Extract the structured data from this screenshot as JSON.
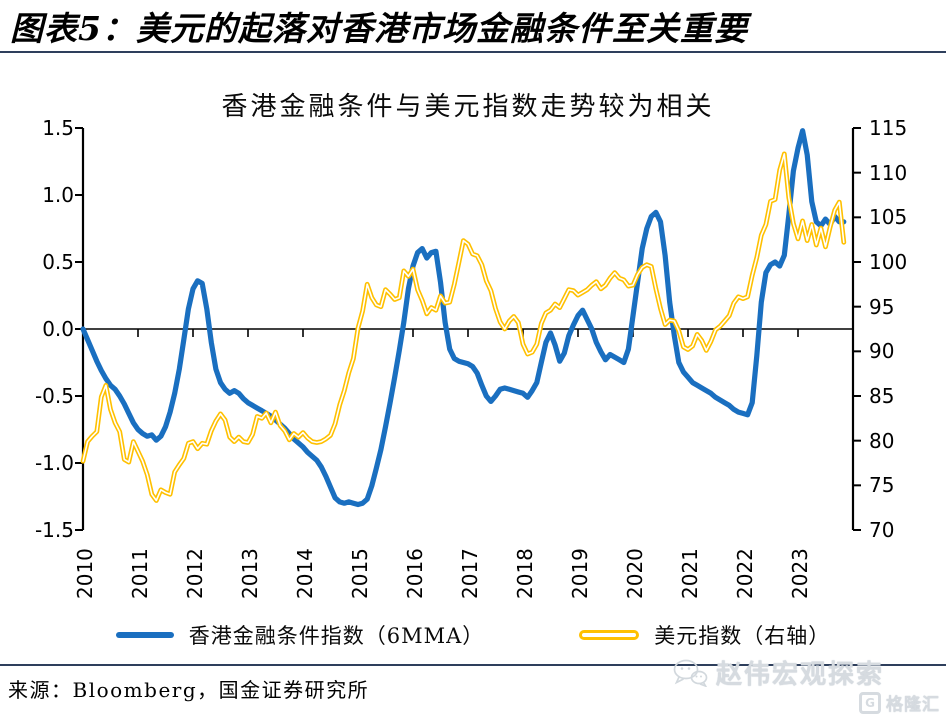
{
  "header": {
    "title": "图表5：美元的起落对香港市场金融条件至关重要"
  },
  "chart_data": {
    "type": "line",
    "title": "香港金融条件与美元指数走势较为相关",
    "grid": false,
    "legend_position": "bottom",
    "x": {
      "unit": "month",
      "points_per_year": 12,
      "tick_labels": [
        "2010",
        "2011",
        "2012",
        "2013",
        "2014",
        "2015",
        "2016",
        "2017",
        "2018",
        "2019",
        "2020",
        "2021",
        "2022",
        "2023"
      ]
    },
    "left_axis": {
      "min": -1.5,
      "max": 1.5,
      "tick_labels": [
        "1.5",
        "1.0",
        "0.5",
        "0.0",
        "-0.5",
        "-1.0",
        "-1.5"
      ]
    },
    "right_axis": {
      "min": 70,
      "max": 115,
      "tick_labels": [
        "115",
        "110",
        "105",
        "100",
        "95",
        "90",
        "85",
        "80",
        "75",
        "70"
      ]
    },
    "series": [
      {
        "name": "香港金融条件指数（6MMA）",
        "axis": "left",
        "color": "#1a6fc0",
        "line_style": "solid",
        "start": "2010-01",
        "values": [
          0.0,
          -0.08,
          -0.16,
          -0.24,
          -0.31,
          -0.37,
          -0.42,
          -0.45,
          -0.5,
          -0.56,
          -0.63,
          -0.7,
          -0.75,
          -0.78,
          -0.8,
          -0.79,
          -0.83,
          -0.8,
          -0.73,
          -0.62,
          -0.48,
          -0.3,
          -0.08,
          0.15,
          0.3,
          0.36,
          0.34,
          0.15,
          -0.1,
          -0.3,
          -0.4,
          -0.45,
          -0.48,
          -0.46,
          -0.48,
          -0.52,
          -0.55,
          -0.57,
          -0.59,
          -0.61,
          -0.63,
          -0.65,
          -0.68,
          -0.71,
          -0.74,
          -0.78,
          -0.82,
          -0.85,
          -0.88,
          -0.92,
          -0.95,
          -0.98,
          -1.03,
          -1.1,
          -1.18,
          -1.26,
          -1.29,
          -1.3,
          -1.29,
          -1.3,
          -1.31,
          -1.3,
          -1.27,
          -1.17,
          -1.04,
          -0.9,
          -0.73,
          -0.55,
          -0.36,
          -0.16,
          0.05,
          0.3,
          0.47,
          0.57,
          0.6,
          0.53,
          0.57,
          0.58,
          0.35,
          0.05,
          -0.15,
          -0.22,
          -0.24,
          -0.25,
          -0.26,
          -0.28,
          -0.33,
          -0.42,
          -0.5,
          -0.54,
          -0.5,
          -0.45,
          -0.44,
          -0.45,
          -0.46,
          -0.47,
          -0.48,
          -0.51,
          -0.46,
          -0.4,
          -0.25,
          -0.1,
          -0.03,
          -0.12,
          -0.24,
          -0.18,
          -0.05,
          0.03,
          0.1,
          0.14,
          0.07,
          0.0,
          -0.1,
          -0.17,
          -0.23,
          -0.19,
          -0.21,
          -0.23,
          -0.25,
          -0.15,
          0.1,
          0.35,
          0.6,
          0.75,
          0.84,
          0.87,
          0.8,
          0.55,
          0.2,
          -0.05,
          -0.25,
          -0.32,
          -0.36,
          -0.4,
          -0.42,
          -0.44,
          -0.46,
          -0.48,
          -0.51,
          -0.53,
          -0.55,
          -0.57,
          -0.6,
          -0.62,
          -0.63,
          -0.64,
          -0.55,
          -0.2,
          0.2,
          0.42,
          0.48,
          0.5,
          0.47,
          0.55,
          0.85,
          1.18,
          1.35,
          1.48,
          1.3,
          0.95,
          0.8,
          0.77,
          0.82,
          0.78,
          0.84,
          0.8,
          0.8
        ]
      },
      {
        "name": "美元指数（右轴）",
        "axis": "right",
        "color": "#ffc000",
        "line_style": "double-outline",
        "start": "2010-01",
        "values": [
          77.7,
          79.9,
          80.5,
          81.0,
          84.9,
          86.2,
          83.5,
          82.0,
          81.0,
          77.9,
          77.6,
          79.9,
          78.8,
          77.7,
          76.2,
          74.0,
          73.3,
          74.5,
          74.2,
          74.0,
          76.5,
          77.3,
          78.0,
          79.7,
          79.9,
          79.1,
          79.7,
          79.6,
          81.1,
          82.2,
          83.0,
          82.3,
          80.4,
          79.9,
          80.4,
          79.9,
          79.8,
          80.7,
          82.7,
          82.5,
          83.1,
          82.0,
          83.2,
          81.7,
          81.1,
          80.1,
          80.8,
          80.4,
          80.9,
          80.3,
          79.9,
          79.8,
          79.9,
          80.2,
          80.6,
          81.9,
          84.0,
          85.6,
          87.6,
          89.2,
          92.6,
          94.5,
          97.5,
          96.0,
          95.2,
          95.0,
          96.9,
          96.4,
          95.8,
          96.0,
          99.0,
          98.4,
          99.2,
          96.9,
          95.7,
          94.2,
          94.9,
          94.6,
          96.2,
          95.4,
          95.5,
          97.5,
          99.9,
          102.4,
          102.0,
          100.9,
          100.7,
          99.7,
          97.9,
          96.8,
          94.8,
          93.3,
          92.5,
          93.4,
          93.9,
          93.2,
          90.8,
          89.7,
          89.9,
          90.8,
          93.1,
          94.3,
          94.6,
          95.3,
          94.9,
          95.9,
          96.9,
          96.8,
          96.3,
          96.6,
          96.9,
          97.4,
          97.8,
          97.0,
          97.4,
          98.2,
          98.8,
          98.2,
          98.0,
          97.3,
          97.4,
          98.6,
          99.4,
          99.7,
          99.5,
          97.0,
          94.8,
          93.0,
          93.5,
          93.4,
          92.3,
          90.5,
          90.2,
          90.6,
          91.9,
          91.2,
          90.1,
          91.1,
          92.4,
          92.8,
          93.4,
          94.0,
          95.4,
          96.1,
          95.9,
          96.1,
          98.5,
          100.5,
          103.0,
          104.2,
          106.8,
          107.0,
          110.3,
          112.1,
          107.2,
          104.3,
          102.6,
          104.6,
          102.4,
          104.2,
          101.9,
          103.8,
          101.7,
          103.9,
          105.8,
          106.7,
          102.2
        ]
      }
    ]
  },
  "footer": {
    "source": "来源：Bloomberg，国金证券研究所"
  },
  "watermark": {
    "wechat_text": "赵伟宏观探索",
    "logo_text": "格隆汇"
  }
}
